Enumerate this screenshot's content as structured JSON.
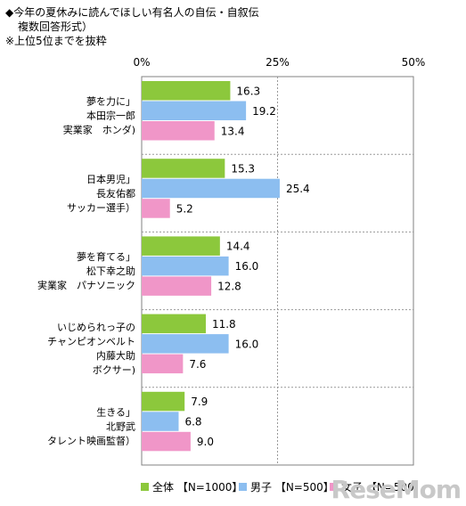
{
  "header": {
    "title": "◆今年の夏休みに読んでほしい有名人の自伝・自叙伝",
    "subtitle": "複数回答形式）",
    "note": "※上位5位までを抜粋"
  },
  "chart_data": {
    "type": "bar",
    "orientation": "horizontal",
    "xlim": [
      0,
      50
    ],
    "x_ticks": [
      "0%",
      "25%",
      "50%"
    ],
    "grid": true,
    "legend_position": "bottom",
    "categories": [
      [
        "夢を力に」",
        "本田宗一郎",
        "実業家　ホンダ)"
      ],
      [
        "日本男児」",
        "長友佑都",
        "サッカー選手）"
      ],
      [
        "夢を育てる」",
        "松下幸之助",
        "実業家　パナソニック"
      ],
      [
        "いじめられっ子の",
        "チャンピオンベルト",
        "内藤大助",
        "ボクサー)"
      ],
      [
        "生きる」",
        "北野武",
        "タレント映画監督）"
      ]
    ],
    "series": [
      {
        "name": "全体 【N=1000】",
        "color": "#8cc83c",
        "values": [
          16.3,
          15.3,
          14.4,
          11.8,
          7.9
        ],
        "labels": [
          "16.3",
          "15.3",
          "14.4",
          "11.8",
          "7.9"
        ]
      },
      {
        "name": "男子 【N=500】",
        "color": "#8cbef0",
        "values": [
          19.2,
          25.4,
          16.0,
          16.0,
          6.8
        ],
        "labels": [
          "19.2",
          "25.4",
          "16.0",
          "16.0",
          "6.8"
        ]
      },
      {
        "name": "女子 【N=500】",
        "color": "#f096c8",
        "values": [
          13.4,
          5.2,
          12.8,
          7.6,
          9.0
        ],
        "labels": [
          "13.4",
          "5.2",
          "12.8",
          "7.6",
          "9.0"
        ]
      }
    ]
  },
  "watermark": "ReseMom"
}
